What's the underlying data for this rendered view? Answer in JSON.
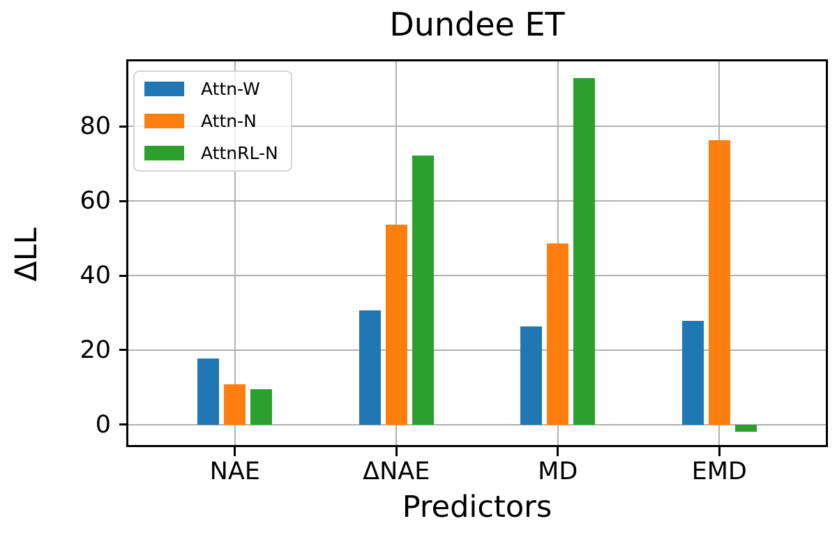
{
  "chart_data": {
    "type": "bar",
    "title": "Dundee ET",
    "xlabel": "Predictors",
    "ylabel": "ΔLL",
    "categories": [
      "NAE",
      "ΔNAE",
      "MD",
      "EMD"
    ],
    "series": [
      {
        "name": "Attn-W",
        "color": "#1f77b4",
        "values": [
          17.7,
          30.6,
          26.4,
          27.8
        ]
      },
      {
        "name": "Attn-N",
        "color": "#ff7f0e",
        "values": [
          10.7,
          53.7,
          48.7,
          76.3
        ]
      },
      {
        "name": "AttnRL-N",
        "color": "#2ca02c",
        "values": [
          9.4,
          72.3,
          93.0,
          -1.9
        ]
      }
    ],
    "ylim": [
      -5.5,
      97.5
    ],
    "yticks": [
      0,
      20,
      40,
      60,
      80
    ],
    "grid": true,
    "grid_color": "#b0b0b0",
    "legend_position": "upper left"
  }
}
